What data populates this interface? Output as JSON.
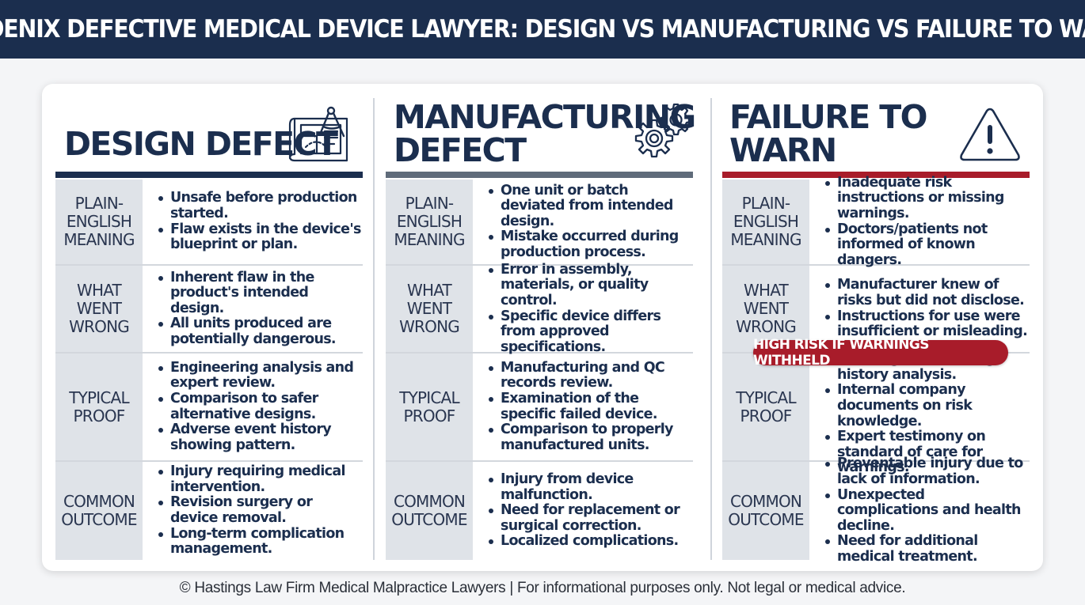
{
  "header": {
    "title": "PHOENIX DEFECTIVE MEDICAL DEVICE LAWYER: DESIGN VS MANUFACTURING VS FAILURE TO WARN"
  },
  "colors": {
    "navy": "#1b2e4e",
    "steel_bar": "#5f6b7a",
    "red_bar": "#a81c2a",
    "label_bg": "#dfe3e8"
  },
  "columns": [
    {
      "title": "DESIGN DEFECT",
      "icon": "blueprint-compass-icon",
      "rows": [
        {
          "label": "PLAIN-\nENGLISH\nMEANING",
          "items": [
            "Unsafe before production started.",
            "Flaw exists in the device's blueprint or plan."
          ]
        },
        {
          "label": "WHAT\nWENT\nWRONG",
          "items": [
            "Inherent flaw in the product's intended design.",
            "All units produced are potentially dangerous."
          ]
        },
        {
          "label": "TYPICAL\nPROOF",
          "items": [
            "Engineering analysis and expert review.",
            "Comparison to safer alternative designs.",
            "Adverse event history showing pattern."
          ]
        },
        {
          "label": "COMMON\nOUTCOME",
          "items": [
            "Injury requiring medical intervention.",
            "Revision surgery or device removal.",
            "Long-term complication management."
          ]
        }
      ]
    },
    {
      "title": "MANUFACTURING\nDEFECT",
      "icon": "gears-icon",
      "rows": [
        {
          "label": "PLAIN-\nENGLISH\nMEANING",
          "items": [
            "One unit or batch deviated from intended design.",
            "Mistake occurred during production process."
          ]
        },
        {
          "label": "WHAT\nWENT\nWRONG",
          "items": [
            "Error in assembly, materials, or quality control.",
            "Specific device differs from approved specifications."
          ]
        },
        {
          "label": "TYPICAL\nPROOF",
          "items": [
            "Manufacturing and QC records review.",
            "Examination of the specific failed device.",
            "Comparison to properly manufactured units."
          ]
        },
        {
          "label": "COMMON\nOUTCOME",
          "items": [
            "Injury from device malfunction.",
            "Need for replacement or surgical correction.",
            "Localized complications."
          ]
        }
      ]
    },
    {
      "title": "FAILURE TO\nWARN",
      "icon": "warning-triangle-icon",
      "badge": "HIGH RISK IF WARNINGS WITHHELD",
      "rows": [
        {
          "label": "PLAIN-\nENGLISH\nMEANING",
          "items": [
            "Inadequate risk instructions or missing warnings.",
            "Doctors/patients not informed of known dangers."
          ]
        },
        {
          "label": "WHAT\nWENT\nWRONG",
          "items": [
            "Manufacturer knew of risks but did not disclose.",
            "Instructions for use were insufficient or misleading."
          ]
        },
        {
          "label": "TYPICAL\nPROOF",
          "items": [
            "Labeling and warning history analysis.",
            "Internal company documents on risk knowledge.",
            "Expert testimony on standard of care for warnings."
          ]
        },
        {
          "label": "COMMON\nOUTCOME",
          "items": [
            "Preventable injury due to lack of information.",
            "Unexpected complications and health decline.",
            "Need for additional medical treatment."
          ]
        }
      ]
    }
  ],
  "footer": {
    "text": "© Hastings Law Firm Medical Malpractice Lawyers | For informational purposes only. Not legal or medical advice."
  }
}
